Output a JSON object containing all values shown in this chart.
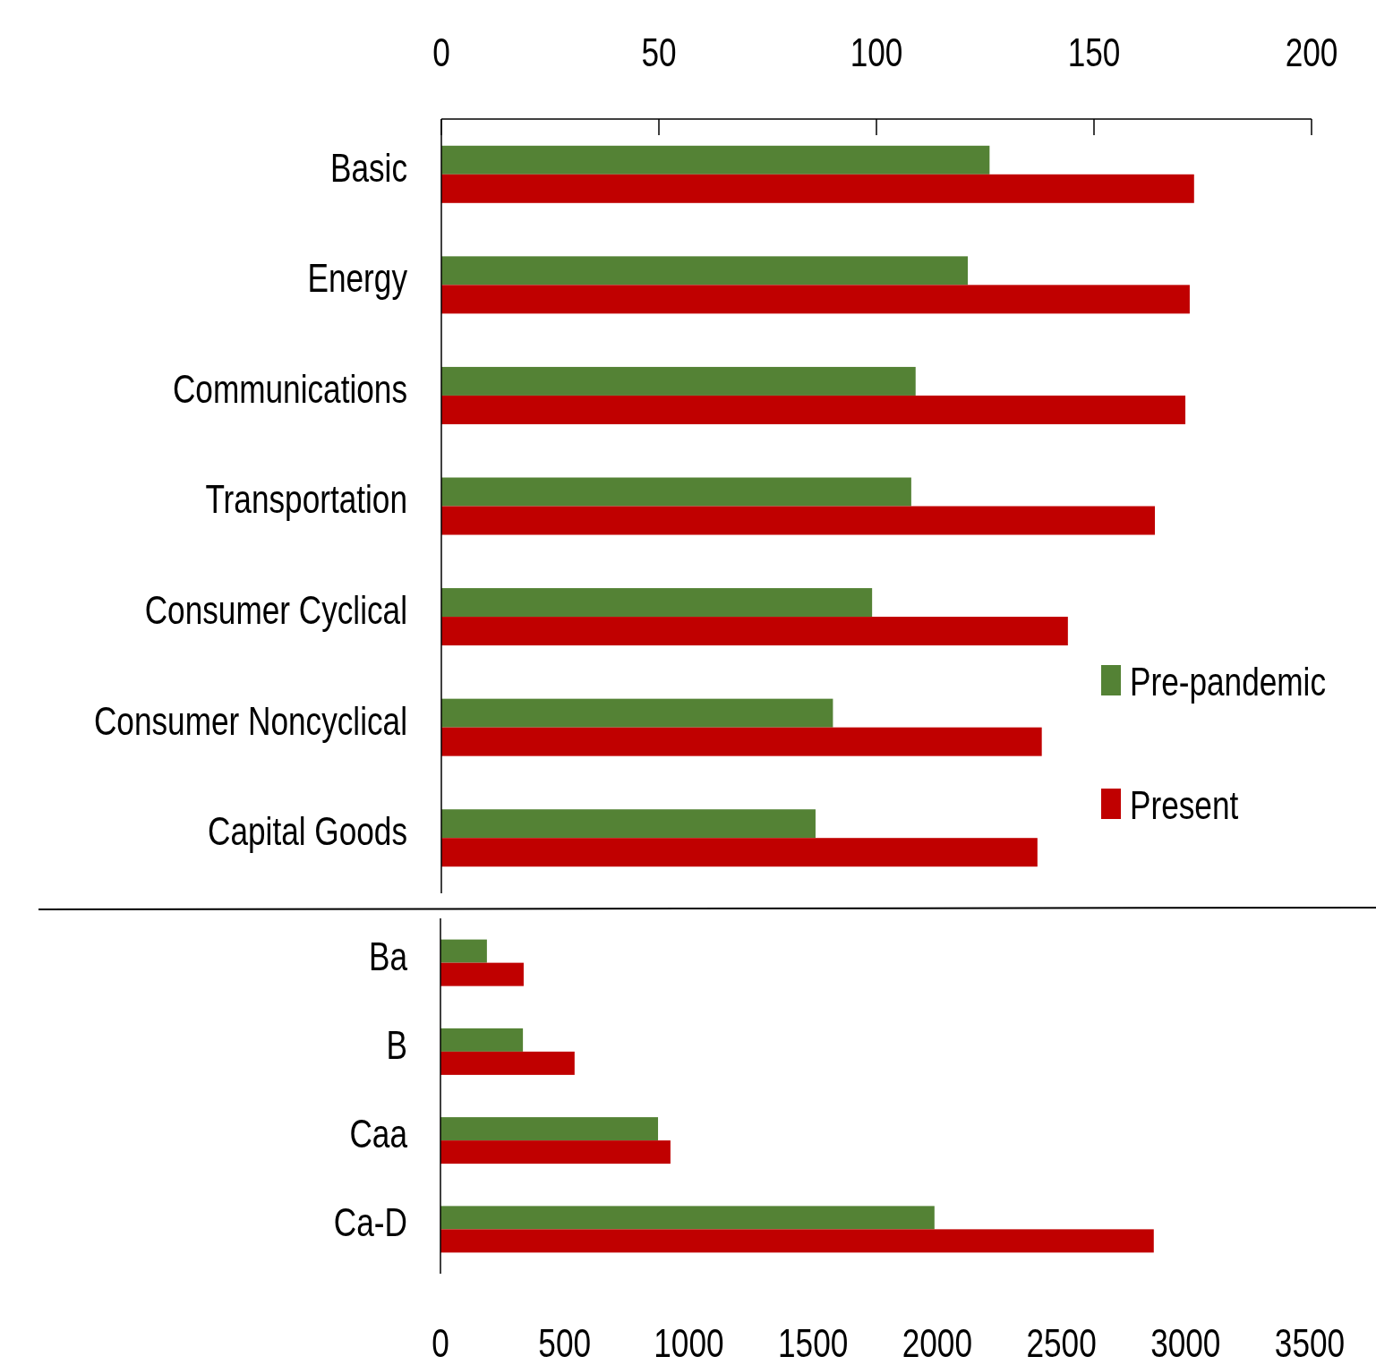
{
  "chart_data": [
    {
      "type": "bar",
      "orientation": "horizontal",
      "categories": [
        "Basic",
        "Energy",
        "Communications",
        "Transportation",
        "Consumer Cyclical",
        "Consumer Noncyclical",
        "Capital Goods"
      ],
      "series": [
        {
          "name": "Pre-pandemic",
          "color": "#548235",
          "values": [
            126,
            121,
            109,
            108,
            99,
            90,
            86
          ]
        },
        {
          "name": "Present",
          "color": "#c00000",
          "values": [
            173,
            172,
            171,
            164,
            144,
            138,
            137
          ]
        }
      ],
      "xlim": [
        0,
        200
      ],
      "xticks": [
        0,
        50,
        100,
        150,
        200
      ],
      "legend": "right",
      "grid": false
    },
    {
      "type": "bar",
      "orientation": "horizontal",
      "categories": [
        "Ba",
        "B",
        "Caa",
        "Ca-D"
      ],
      "series": [
        {
          "color": "#548235",
          "values": [
            187,
            332,
            876,
            1989
          ]
        },
        {
          "color": "#c00000",
          "values": [
            335,
            540,
            926,
            2872
          ]
        }
      ],
      "xlim": [
        0,
        3500
      ],
      "xticks": [
        0,
        500,
        1000,
        1500,
        2000,
        2500,
        3000,
        3500
      ],
      "legend": false,
      "grid": false
    }
  ]
}
